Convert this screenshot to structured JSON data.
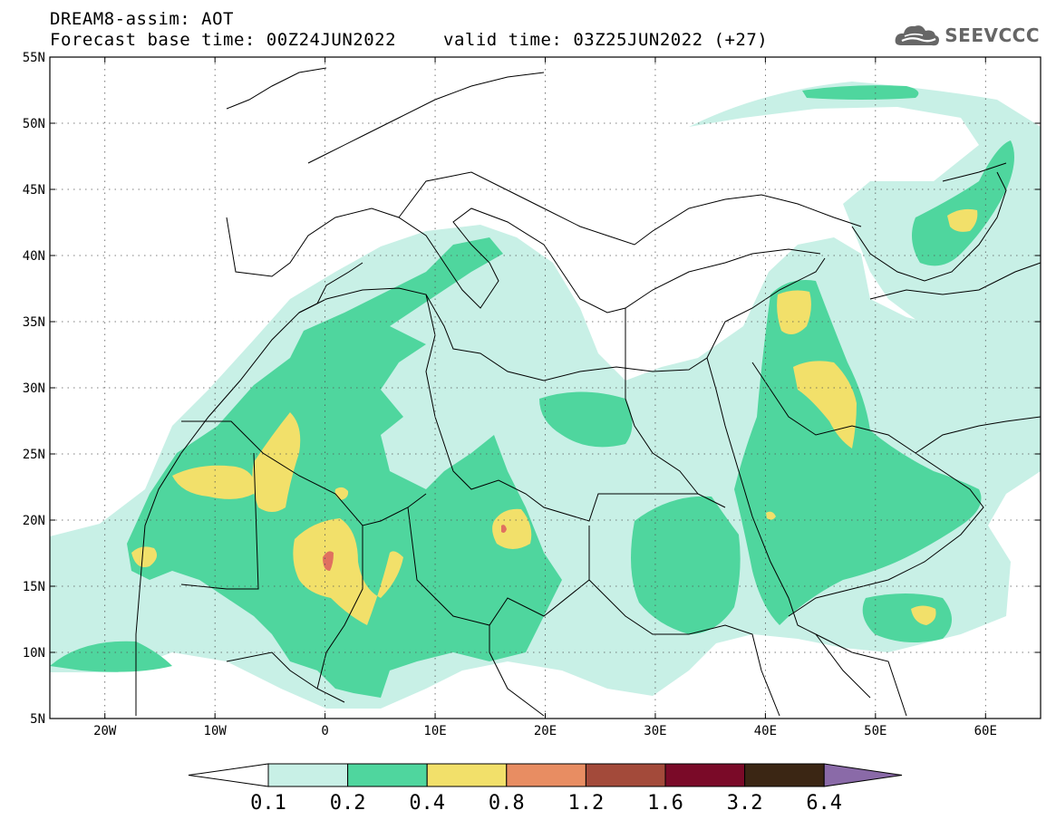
{
  "header": {
    "line1": "DREAM8-assim: AOT",
    "line2_base": "Forecast base time: 00Z24JUN2022",
    "line2_valid": "valid time: 03Z25JUN2022 (+27)"
  },
  "logo": {
    "text": "SEEVCCC",
    "icon": "cloud-logo-icon"
  },
  "map": {
    "lon_range": [
      -25,
      65
    ],
    "lat_range": [
      5,
      55
    ],
    "lon_ticks": [
      {
        "value": -20,
        "label": "20W"
      },
      {
        "value": -10,
        "label": "10W"
      },
      {
        "value": 0,
        "label": "0"
      },
      {
        "value": 10,
        "label": "10E"
      },
      {
        "value": 20,
        "label": "20E"
      },
      {
        "value": 30,
        "label": "30E"
      },
      {
        "value": 40,
        "label": "40E"
      },
      {
        "value": 50,
        "label": "50E"
      },
      {
        "value": 60,
        "label": "60E"
      }
    ],
    "lat_ticks": [
      {
        "value": 5,
        "label": "5N"
      },
      {
        "value": 10,
        "label": "10N"
      },
      {
        "value": 15,
        "label": "15N"
      },
      {
        "value": 20,
        "label": "20N"
      },
      {
        "value": 25,
        "label": "25N"
      },
      {
        "value": 30,
        "label": "30N"
      },
      {
        "value": 35,
        "label": "35N"
      },
      {
        "value": 40,
        "label": "40N"
      },
      {
        "value": 45,
        "label": "45N"
      },
      {
        "value": 50,
        "label": "50N"
      },
      {
        "value": 55,
        "label": "55N"
      }
    ],
    "grid": "dotted"
  },
  "colorbar": {
    "boundaries": [
      "0.1",
      "0.2",
      "0.4",
      "0.8",
      "1.2",
      "1.6",
      "3.2",
      "6.4"
    ],
    "colors": [
      "#ffffff",
      "#c8f0e6",
      "#4fd69e",
      "#f2e06a",
      "#e88d62",
      "#a34a3a",
      "#7a0a28",
      "#3b2614",
      "#8a6aa8"
    ]
  },
  "aot_colors": {
    "c1": "#c8f0e6",
    "c2": "#4fd69e",
    "c3": "#f2e06a",
    "c4": "#e88d62",
    "c5": "#e07060"
  }
}
